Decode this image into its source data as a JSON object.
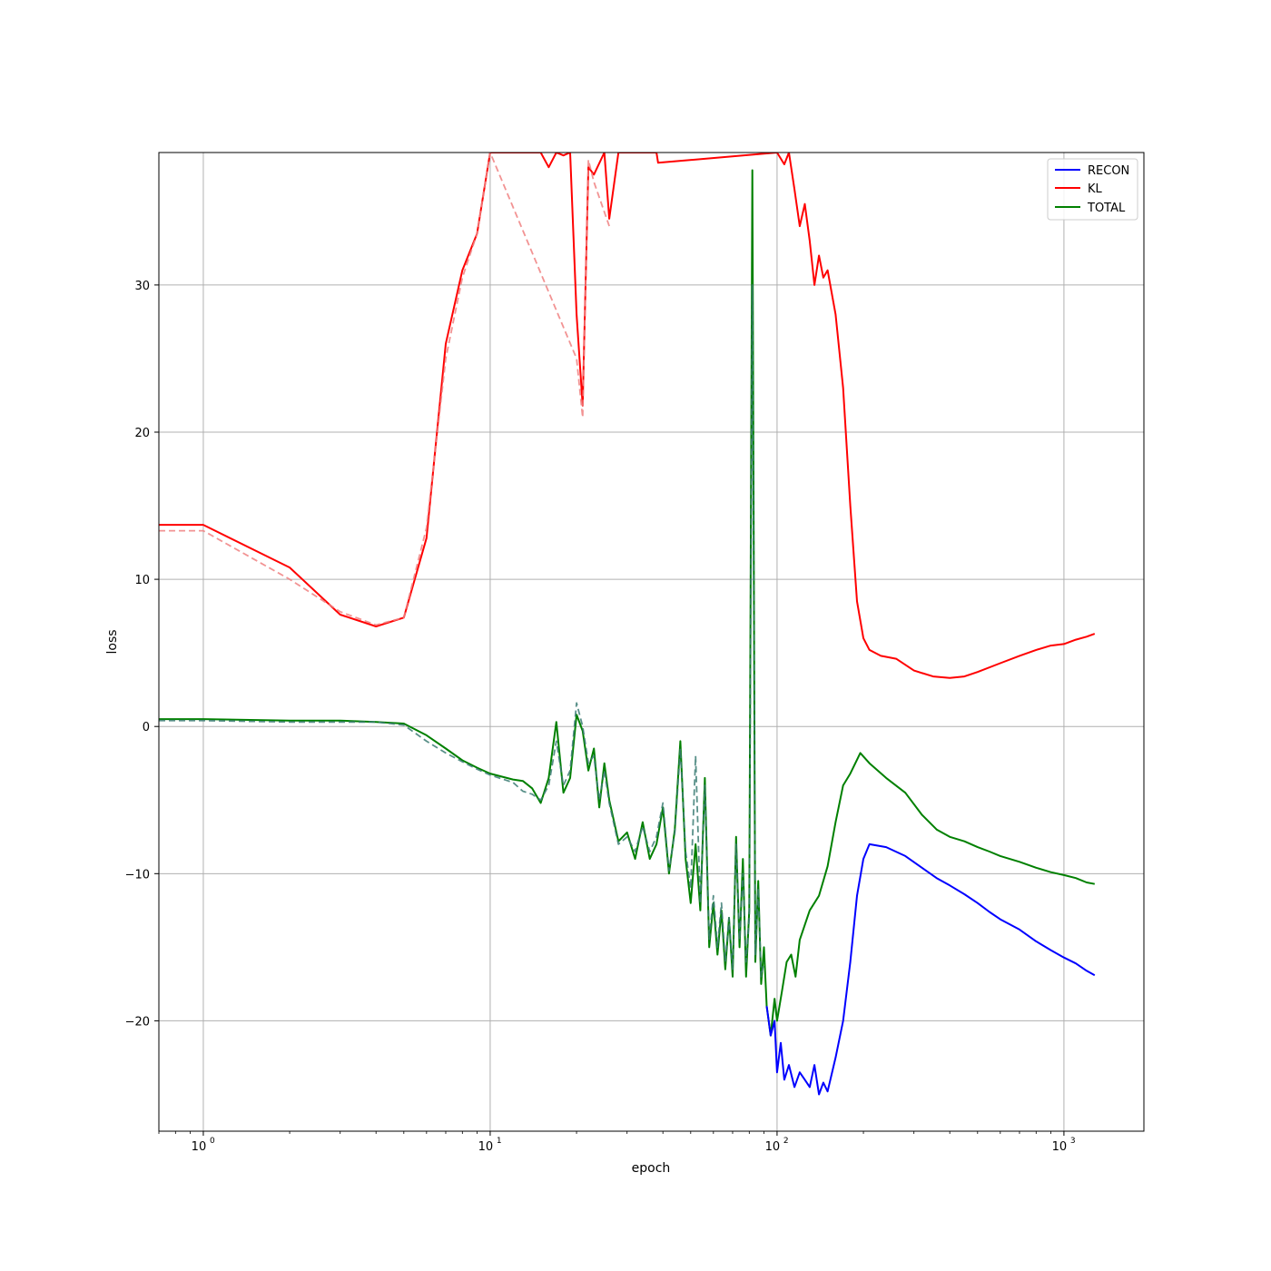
{
  "chart_data": {
    "type": "line",
    "title": "",
    "xlabel": "epoch",
    "ylabel": "loss",
    "xscale": "log",
    "xlim": [
      0.7,
      1900
    ],
    "ylim": [
      -27.5,
      39
    ],
    "grid": true,
    "legend_position": "top-right",
    "x_ticks": [
      {
        "value": 1,
        "base": "10",
        "exp": "0"
      },
      {
        "value": 10,
        "base": "10",
        "exp": "1"
      },
      {
        "value": 100,
        "base": "10",
        "exp": "2"
      },
      {
        "value": 1000,
        "base": "10",
        "exp": "3"
      }
    ],
    "y_ticks": [
      {
        "value": 30,
        "label": "30"
      },
      {
        "value": 20,
        "label": "20"
      },
      {
        "value": 10,
        "label": "10"
      },
      {
        "value": 0,
        "label": "0"
      },
      {
        "value": -10,
        "label": "-10"
      },
      {
        "value": -20,
        "label": "-20"
      }
    ],
    "series": [
      {
        "name": "KL",
        "color": "#ff0000",
        "style": "solid",
        "x": [
          0.7,
          1,
          2,
          3,
          4,
          5,
          6,
          7,
          8,
          9,
          10,
          15,
          16,
          17,
          18,
          19,
          20,
          21,
          22,
          23,
          25,
          26,
          28,
          38,
          38.5,
          100,
          106,
          110,
          115,
          120,
          125,
          130,
          135,
          140,
          145,
          150,
          160,
          170,
          180,
          190,
          200,
          210,
          230,
          260,
          300,
          350,
          400,
          450,
          500,
          600,
          700,
          800,
          900,
          1000,
          1100,
          1200,
          1280
        ],
        "y": [
          13.7,
          13.7,
          10.8,
          7.6,
          6.8,
          7.4,
          12.8,
          26,
          31,
          33.5,
          39,
          39,
          38,
          39,
          38.8,
          39,
          28,
          21.8,
          38,
          37.5,
          39,
          34.5,
          39,
          39,
          38.3,
          39,
          38.2,
          39,
          36.5,
          34,
          35.5,
          33,
          30,
          32,
          30.5,
          31,
          28,
          23,
          15,
          8.5,
          6,
          5.2,
          4.8,
          4.6,
          3.8,
          3.4,
          3.3,
          3.4,
          3.7,
          4.3,
          4.8,
          5.2,
          5.5,
          5.6,
          5.9,
          6.1,
          6.3
        ]
      },
      {
        "name": "KL-dashed",
        "color": "#f08080",
        "style": "dashed",
        "x": [
          0.7,
          1,
          2,
          3,
          4,
          5,
          6,
          7,
          8,
          9,
          10,
          20,
          21,
          22,
          23,
          26
        ],
        "y": [
          13.3,
          13.3,
          10,
          7.8,
          6.9,
          7.4,
          13.5,
          25,
          30.5,
          33.5,
          39,
          25,
          21,
          38.5,
          37,
          34
        ]
      },
      {
        "name": "TOTAL",
        "color": "#008000",
        "style": "solid",
        "x": [
          0.7,
          1,
          2,
          3,
          4,
          5,
          6,
          7,
          8,
          9,
          10,
          12,
          13,
          14,
          15,
          16,
          17,
          18,
          19,
          20,
          21,
          22,
          23,
          24,
          25,
          26,
          28,
          30,
          32,
          34,
          36,
          38,
          40,
          42,
          44,
          46,
          48,
          50,
          52,
          54,
          56,
          58,
          60,
          62,
          64,
          66,
          68,
          70,
          72,
          74,
          76,
          78,
          80,
          82,
          84,
          86,
          88,
          90,
          92,
          95,
          98,
          100,
          104,
          108,
          112,
          116,
          120,
          130,
          140,
          150,
          160,
          170,
          180,
          195,
          210,
          240,
          280,
          320,
          360,
          400,
          450,
          500,
          550,
          600,
          700,
          800,
          900,
          1000,
          1100,
          1200,
          1280
        ],
        "y": [
          0.5,
          0.5,
          0.4,
          0.4,
          0.3,
          0.2,
          -0.6,
          -1.5,
          -2.3,
          -2.8,
          -3.2,
          -3.6,
          -3.7,
          -4.2,
          -5.2,
          -3.5,
          0.3,
          -4.5,
          -3.5,
          0.8,
          -0.3,
          -3.0,
          -1.5,
          -5.5,
          -2.5,
          -5.0,
          -7.8,
          -7.2,
          -9.0,
          -6.5,
          -9.0,
          -8.0,
          -5.5,
          -10.0,
          -7.0,
          -1.0,
          -9.0,
          -12.0,
          -8.0,
          -12.5,
          -3.5,
          -15.0,
          -12.0,
          -15.5,
          -12.5,
          -16.5,
          -13.0,
          -17.0,
          -7.5,
          -15.0,
          -9.0,
          -17.0,
          -12.5,
          37.8,
          -16.0,
          -10.5,
          -17.5,
          -15.0,
          -19.0,
          -21.0,
          -18.5,
          -20.0,
          -18.0,
          -16.0,
          -15.5,
          -17.0,
          -14.5,
          -12.5,
          -11.5,
          -9.5,
          -6.5,
          -4.0,
          -3.2,
          -1.8,
          -2.5,
          -3.5,
          -4.5,
          -6.0,
          -7.0,
          -7.5,
          -7.8,
          -8.2,
          -8.5,
          -8.8,
          -9.2,
          -9.6,
          -9.9,
          -10.1,
          -10.3,
          -10.6,
          -10.7
        ]
      },
      {
        "name": "RECON",
        "color": "#0000ff",
        "style": "solid",
        "x": [
          92,
          95,
          98,
          100,
          103,
          106,
          110,
          115,
          120,
          125,
          130,
          135,
          140,
          145,
          150,
          160,
          170,
          180,
          190,
          200,
          210,
          240,
          280,
          320,
          360,
          400,
          450,
          500,
          550,
          600,
          700,
          800,
          900,
          1000,
          1100,
          1200,
          1280
        ],
        "y": [
          -19.0,
          -21.0,
          -20.0,
          -23.5,
          -21.5,
          -24.0,
          -23.0,
          -24.5,
          -23.5,
          -24.0,
          -24.5,
          -23.0,
          -25.0,
          -24.2,
          -24.8,
          -22.5,
          -20.0,
          -16.0,
          -11.5,
          -9.0,
          -8.0,
          -8.2,
          -8.8,
          -9.6,
          -10.3,
          -10.8,
          -11.4,
          -12.0,
          -12.6,
          -13.1,
          -13.8,
          -14.6,
          -15.2,
          -15.7,
          -16.1,
          -16.6,
          -16.9
        ]
      },
      {
        "name": "TOTAL-dashed",
        "color": "#3c7d74",
        "style": "dashed",
        "x": [
          0.7,
          1,
          2,
          3,
          4,
          5,
          6,
          7,
          8,
          9,
          10,
          12,
          13,
          14,
          15,
          16,
          17,
          18,
          19,
          20,
          21,
          22,
          23,
          24,
          25,
          26,
          28,
          30,
          32,
          34,
          36,
          38,
          40,
          42,
          44,
          46,
          48,
          50,
          52,
          54,
          56,
          58,
          60,
          62,
          64,
          66,
          68,
          70,
          72,
          74,
          76,
          78,
          80,
          82,
          84,
          86,
          88,
          90
        ],
        "y": [
          0.4,
          0.4,
          0.3,
          0.3,
          0.3,
          0.1,
          -1.0,
          -1.8,
          -2.4,
          -2.9,
          -3.3,
          -3.8,
          -4.4,
          -4.6,
          -5.0,
          -4.0,
          -1.0,
          -4.0,
          -3.0,
          1.6,
          0.0,
          -2.5,
          -2.0,
          -5.0,
          -3.0,
          -5.2,
          -8.0,
          -7.5,
          -8.5,
          -6.8,
          -8.5,
          -7.5,
          -5.2,
          -9.8,
          -7.2,
          -1.5,
          -8.5,
          -11.0,
          -2.0,
          -12.0,
          -4.0,
          -14.5,
          -11.5,
          -15.0,
          -12.0,
          -16.0,
          -13.0,
          -16.5,
          -8.0,
          -14.5,
          -10.0,
          -16.0,
          -13.0,
          30.0,
          -15.5,
          -11.0,
          -17.0,
          -16.0
        ]
      }
    ]
  },
  "legend": {
    "items": [
      {
        "label": "RECON",
        "color": "#0000ff"
      },
      {
        "label": "KL",
        "color": "#ff0000"
      },
      {
        "label": "TOTAL",
        "color": "#008000"
      }
    ]
  }
}
